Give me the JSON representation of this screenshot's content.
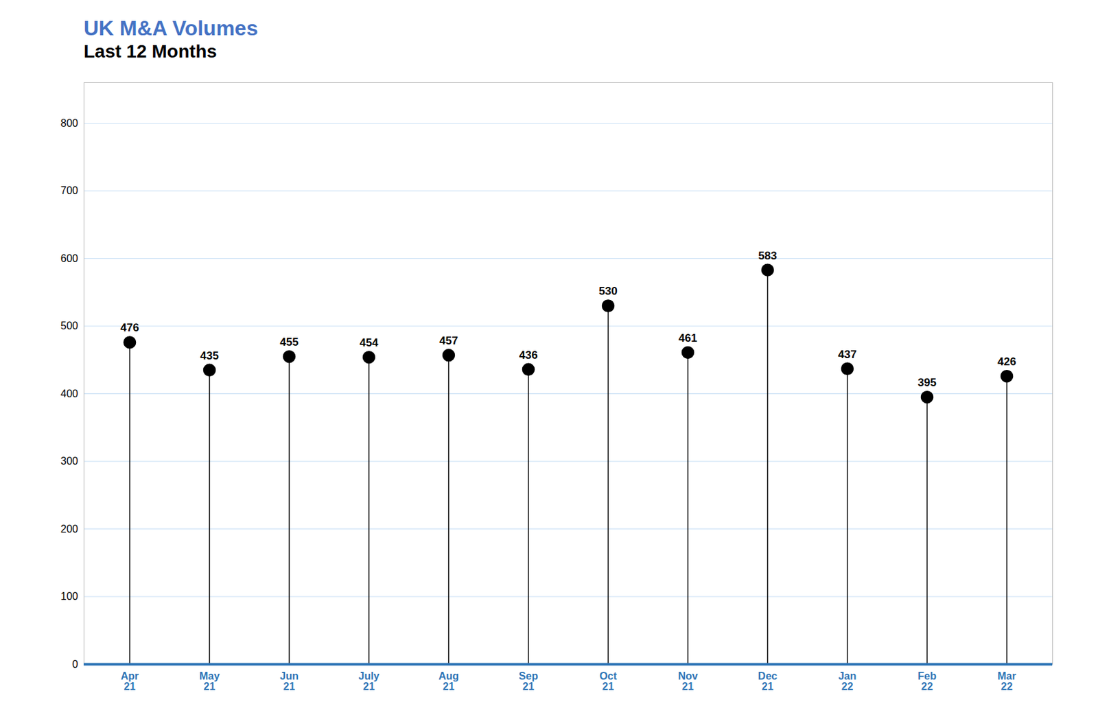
{
  "chart_data": {
    "type": "lollipop",
    "title": "UK M&A Volumes",
    "subtitle": "Last 12 Months",
    "categories": [
      "Apr\n21",
      "May\n21",
      "Jun\n21",
      "July\n21",
      "Aug\n21",
      "Sep\n21",
      "Oct\n21",
      "Nov\n21",
      "Dec\n21",
      "Jan\n22",
      "Feb\n22",
      "Mar\n22"
    ],
    "values": [
      476,
      435,
      455,
      454,
      457,
      436,
      530,
      461,
      583,
      437,
      395,
      426
    ],
    "color": "#000000",
    "ylim": [
      0,
      860
    ],
    "yticks": [
      0,
      100,
      200,
      300,
      400,
      500,
      600,
      700,
      800
    ],
    "grid": true,
    "data_labels": true
  }
}
